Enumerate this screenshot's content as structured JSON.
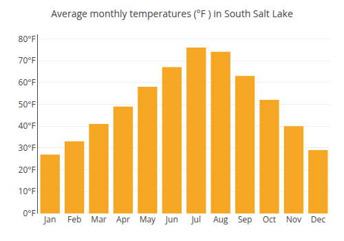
{
  "chart_data": {
    "type": "bar",
    "title": "Average monthly temperatures (°F ) in South Salt Lake",
    "categories": [
      "Jan",
      "Feb",
      "Mar",
      "Apr",
      "May",
      "Jun",
      "Jul",
      "Aug",
      "Sep",
      "Oct",
      "Nov",
      "Dec"
    ],
    "values": [
      27,
      33,
      41,
      49,
      58,
      67,
      76,
      74,
      63,
      52,
      40,
      29
    ],
    "color": "#F5A623",
    "ylim": [
      0,
      82
    ],
    "yticks": [
      {
        "value": 0,
        "label": "0°F"
      },
      {
        "value": 10,
        "label": "10°F"
      },
      {
        "value": 20,
        "label": "20°F"
      },
      {
        "value": 30,
        "label": "30°F"
      },
      {
        "value": 40,
        "label": "40°F"
      },
      {
        "value": 50,
        "label": "50°F"
      },
      {
        "value": 60,
        "label": "60°F"
      },
      {
        "value": 70,
        "label": "70°F"
      },
      {
        "value": 80,
        "label": "80°F"
      }
    ],
    "grid": true
  }
}
